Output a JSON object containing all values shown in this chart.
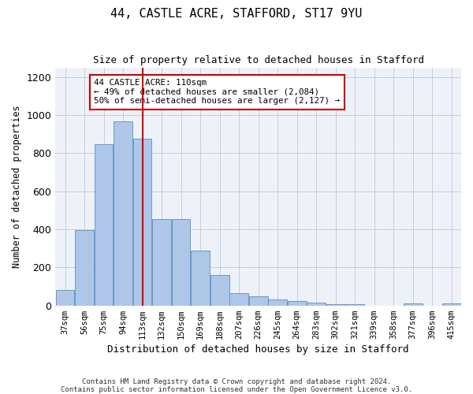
{
  "title1": "44, CASTLE ACRE, STAFFORD, ST17 9YU",
  "title2": "Size of property relative to detached houses in Stafford",
  "xlabel": "Distribution of detached houses by size in Stafford",
  "ylabel": "Number of detached properties",
  "footnote1": "Contains HM Land Registry data © Crown copyright and database right 2024.",
  "footnote2": "Contains public sector information licensed under the Open Government Licence v3.0.",
  "categories": [
    "37sqm",
    "56sqm",
    "75sqm",
    "94sqm",
    "113sqm",
    "132sqm",
    "150sqm",
    "169sqm",
    "188sqm",
    "207sqm",
    "226sqm",
    "245sqm",
    "264sqm",
    "283sqm",
    "302sqm",
    "321sqm",
    "339sqm",
    "358sqm",
    "377sqm",
    "396sqm",
    "415sqm"
  ],
  "values": [
    80,
    395,
    845,
    965,
    875,
    455,
    455,
    290,
    160,
    65,
    50,
    30,
    25,
    15,
    5,
    5,
    0,
    0,
    10,
    0,
    10
  ],
  "bar_color": "#aec6e8",
  "bar_edge_color": "#5a8fc2",
  "vline_x_index": 4,
  "vline_color": "#cc0000",
  "annotation_text": "44 CASTLE ACRE: 110sqm\n← 49% of detached houses are smaller (2,084)\n50% of semi-detached houses are larger (2,127) →",
  "annotation_box_color": "#cc0000",
  "ylim": [
    0,
    1250
  ],
  "yticks": [
    0,
    200,
    400,
    600,
    800,
    1000,
    1200
  ],
  "grid_color": "#c0cfe0",
  "bg_color": "#eef2f8",
  "title1_fontsize": 11,
  "title2_fontsize": 9,
  "ylabel_fontsize": 8.5,
  "xlabel_fontsize": 9,
  "tick_fontsize": 7.5,
  "footnote_fontsize": 6.5
}
